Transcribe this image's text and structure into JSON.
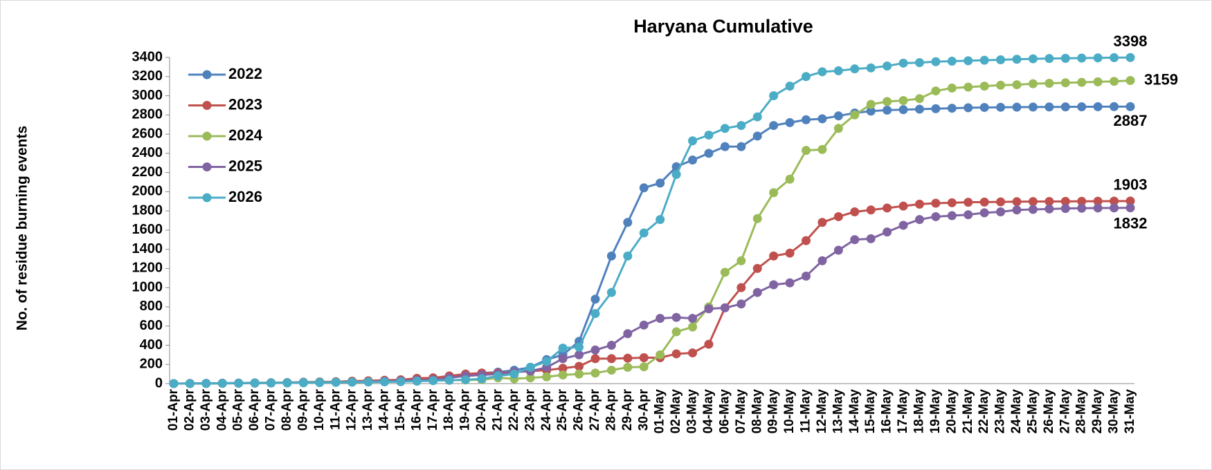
{
  "chart_data": {
    "type": "line",
    "title": "Haryana Cumulative",
    "y_label": "No. of residue burning events",
    "categories": [
      "01-Apr",
      "02-Apr",
      "03-Apr",
      "04-Apr",
      "05-Apr",
      "06-Apr",
      "07-Apr",
      "08-Apr",
      "09-Apr",
      "10-Apr",
      "11-Apr",
      "12-Apr",
      "13-Apr",
      "14-Apr",
      "15-Apr",
      "16-Apr",
      "17-Apr",
      "18-Apr",
      "19-Apr",
      "20-Apr",
      "21-Apr",
      "22-Apr",
      "23-Apr",
      "24-Apr",
      "25-Apr",
      "26-Apr",
      "27-Apr",
      "28-Apr",
      "29-Apr",
      "30-Apr",
      "01-May",
      "02-May",
      "03-May",
      "04-May",
      "06-May",
      "07-May",
      "08-May",
      "09-May",
      "10-May",
      "11-May",
      "12-May",
      "13-May",
      "14-May",
      "15-May",
      "16-May",
      "17-May",
      "18-May",
      "19-May",
      "20-May",
      "21-May",
      "22-May",
      "23-May",
      "24-May",
      "25-May",
      "26-May",
      "27-May",
      "28-May",
      "29-May",
      "30-May",
      "31-May"
    ],
    "series": [
      {
        "name": "2022",
        "color": "#4f81bd",
        "label_color": "#0070c0",
        "values": [
          0,
          2,
          3,
          5,
          6,
          8,
          10,
          12,
          15,
          18,
          20,
          25,
          28,
          32,
          36,
          40,
          48,
          70,
          90,
          110,
          120,
          140,
          170,
          250,
          300,
          440,
          880,
          1330,
          1680,
          2040,
          2090,
          2260,
          2330,
          2400,
          2470,
          2470,
          2580,
          2690,
          2720,
          2750,
          2760,
          2790,
          2820,
          2840,
          2850,
          2855,
          2860,
          2865,
          2870,
          2875,
          2878,
          2880,
          2881,
          2882,
          2883,
          2884,
          2885,
          2886,
          2887,
          2887
        ]
      },
      {
        "name": "2023",
        "color": "#c0504d",
        "label_color": "#c0504d",
        "values": [
          0,
          1,
          2,
          3,
          4,
          5,
          7,
          9,
          12,
          15,
          20,
          25,
          30,
          35,
          40,
          55,
          60,
          80,
          100,
          110,
          110,
          120,
          130,
          140,
          160,
          180,
          260,
          260,
          265,
          270,
          270,
          310,
          320,
          410,
          790,
          1000,
          1200,
          1330,
          1360,
          1490,
          1680,
          1740,
          1790,
          1810,
          1830,
          1850,
          1870,
          1880,
          1885,
          1890,
          1892,
          1894,
          1896,
          1897,
          1898,
          1899,
          1900,
          1901,
          1902,
          1903
        ]
      },
      {
        "name": "2024",
        "color": "#9bbb59",
        "label_color": "#9bbb59",
        "values": [
          0,
          1,
          2,
          3,
          4,
          6,
          8,
          10,
          12,
          15,
          18,
          20,
          22,
          25,
          28,
          30,
          32,
          35,
          38,
          40,
          60,
          50,
          60,
          70,
          90,
          100,
          110,
          140,
          170,
          175,
          300,
          540,
          590,
          800,
          1160,
          1280,
          1720,
          1990,
          2130,
          2430,
          2440,
          2660,
          2800,
          2910,
          2940,
          2950,
          2970,
          3050,
          3080,
          3090,
          3100,
          3110,
          3115,
          3125,
          3130,
          3135,
          3140,
          3145,
          3150,
          3159
        ]
      },
      {
        "name": "2025",
        "color": "#8064a2",
        "label_color": "#8064a2",
        "values": [
          0,
          1,
          2,
          3,
          4,
          5,
          6,
          8,
          10,
          12,
          15,
          18,
          20,
          25,
          30,
          35,
          40,
          60,
          80,
          90,
          100,
          120,
          130,
          170,
          260,
          300,
          350,
          400,
          520,
          610,
          680,
          690,
          680,
          780,
          790,
          830,
          950,
          1030,
          1050,
          1120,
          1280,
          1390,
          1500,
          1510,
          1580,
          1650,
          1710,
          1740,
          1750,
          1760,
          1780,
          1790,
          1810,
          1815,
          1820,
          1825,
          1828,
          1830,
          1831,
          1832
        ]
      },
      {
        "name": "2026",
        "color": "#4bacc6",
        "label_color": "#4bacc6",
        "values": [
          0,
          1,
          2,
          3,
          4,
          5,
          6,
          7,
          8,
          10,
          12,
          14,
          16,
          18,
          20,
          25,
          30,
          35,
          40,
          50,
          80,
          100,
          170,
          230,
          370,
          380,
          730,
          950,
          1330,
          1570,
          1710,
          2180,
          2530,
          2590,
          2660,
          2690,
          2780,
          3000,
          3100,
          3200,
          3250,
          3260,
          3280,
          3290,
          3310,
          3340,
          3345,
          3355,
          3360,
          3365,
          3370,
          3375,
          3380,
          3385,
          3388,
          3390,
          3393,
          3395,
          3397,
          3398
        ]
      }
    ],
    "ylim": [
      0,
      3400
    ],
    "yticks": [
      0,
      200,
      400,
      600,
      800,
      1000,
      1200,
      1400,
      1600,
      1800,
      2000,
      2200,
      2400,
      2600,
      2800,
      3000,
      3200,
      3400
    ],
    "grid": false,
    "legend": "top-left",
    "end_labels": true
  }
}
